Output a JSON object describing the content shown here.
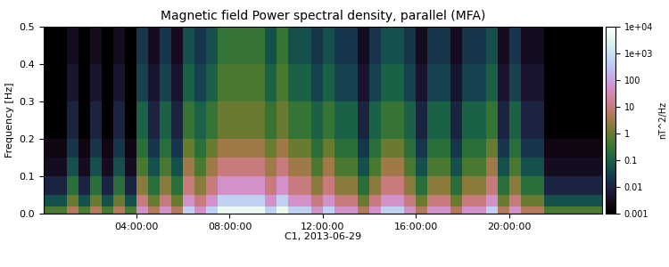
{
  "chart_data": {
    "type": "heatmap",
    "title": "Magnetic field Power spectral density, parallel (MFA)",
    "x_label": "C1, 2013-06-29",
    "y_label": "Frequency [Hz]",
    "xlim": [
      0,
      24
    ],
    "xticks": [
      {
        "value": 4,
        "label": "04:00:00"
      },
      {
        "value": 8,
        "label": "08:00:00"
      },
      {
        "value": 12,
        "label": "12:00:00"
      },
      {
        "value": 16,
        "label": "16:00:00"
      },
      {
        "value": 20,
        "label": "20:00:00"
      }
    ],
    "ylim": [
      0,
      0.5
    ],
    "yticks": [
      {
        "value": 0,
        "label": "0.0"
      },
      0.1,
      0.2,
      0.3,
      0.4,
      0.5
    ],
    "x_bins": [
      0,
      0.5,
      1,
      1.5,
      2,
      2.5,
      3,
      3.5,
      4,
      4.5,
      5,
      5.5,
      6,
      6.5,
      7,
      7.5,
      8,
      8.5,
      9,
      9.5,
      10,
      10.5,
      11,
      11.5,
      12,
      12.5,
      13,
      13.5,
      14,
      14.5,
      15,
      15.5,
      16,
      16.5,
      17,
      17.5,
      18,
      18.5,
      19,
      19.5,
      20,
      20.5,
      21,
      21.5,
      22,
      22.5,
      23,
      23.5,
      24
    ],
    "y_bins": [
      0,
      0.02,
      0.05,
      0.1,
      0.15,
      0.2,
      0.3,
      0.4,
      0.5
    ],
    "cells": [
      [
        0.5,
        0.5,
        5,
        0.5,
        5,
        0.5,
        5,
        0.5,
        50,
        5,
        50,
        5,
        500,
        50,
        500,
        5000,
        5000,
        5000,
        5000,
        500,
        5000,
        500,
        500,
        50,
        500,
        50,
        50,
        5,
        50,
        500,
        500,
        50,
        5,
        50,
        50,
        5,
        50,
        50,
        500,
        5,
        50,
        5,
        5,
        0.5,
        0.5,
        0.5,
        0.5,
        0.5
      ],
      [
        0.05,
        0.05,
        1,
        0.05,
        1,
        0.05,
        1,
        0.05,
        10,
        1,
        10,
        1,
        50,
        10,
        50,
        500,
        500,
        500,
        500,
        50,
        500,
        50,
        50,
        10,
        50,
        10,
        10,
        1,
        10,
        50,
        50,
        10,
        1,
        10,
        10,
        1,
        10,
        10,
        50,
        1,
        10,
        1,
        1,
        0.05,
        0.05,
        0.05,
        0.05,
        0.05
      ],
      [
        0.01,
        0.01,
        0.2,
        0.01,
        0.2,
        0.01,
        0.2,
        0.01,
        2,
        0.2,
        2,
        0.2,
        10,
        2,
        10,
        50,
        50,
        50,
        50,
        10,
        50,
        10,
        10,
        2,
        10,
        2,
        2,
        0.2,
        2,
        10,
        10,
        2,
        0.2,
        2,
        2,
        0.2,
        2,
        2,
        10,
        0.2,
        2,
        0.2,
        0.2,
        0.01,
        0.01,
        0.01,
        0.01,
        0.01
      ],
      [
        0.003,
        0.003,
        0.05,
        0.003,
        0.05,
        0.003,
        0.05,
        0.003,
        0.5,
        0.05,
        0.5,
        0.05,
        3,
        0.5,
        3,
        10,
        10,
        10,
        10,
        3,
        10,
        3,
        3,
        0.5,
        3,
        0.5,
        0.5,
        0.05,
        0.5,
        3,
        3,
        0.5,
        0.05,
        0.5,
        0.5,
        0.05,
        0.5,
        0.5,
        3,
        0.05,
        0.5,
        0.05,
        0.05,
        0.003,
        0.003,
        0.003,
        0.003,
        0.003
      ],
      [
        0.002,
        0.002,
        0.02,
        0.002,
        0.02,
        0.002,
        0.02,
        0.002,
        0.2,
        0.02,
        0.2,
        0.02,
        1,
        0.2,
        1,
        3,
        3,
        3,
        3,
        1,
        3,
        1,
        1,
        0.2,
        1,
        0.2,
        0.2,
        0.02,
        0.2,
        1,
        1,
        0.2,
        0.02,
        0.2,
        0.2,
        0.02,
        0.2,
        0.2,
        1,
        0.02,
        0.2,
        0.02,
        0.02,
        0.002,
        0.002,
        0.002,
        0.002,
        0.002
      ],
      [
        0.001,
        0.001,
        0.01,
        0.001,
        0.01,
        0.001,
        0.01,
        0.001,
        0.1,
        0.01,
        0.1,
        0.01,
        0.3,
        0.1,
        0.3,
        1,
        1,
        1,
        1,
        0.3,
        1,
        0.3,
        0.3,
        0.1,
        0.3,
        0.1,
        0.1,
        0.01,
        0.1,
        0.3,
        0.3,
        0.1,
        0.01,
        0.1,
        0.1,
        0.01,
        0.1,
        0.1,
        0.3,
        0.01,
        0.1,
        0.01,
        0.01,
        0.001,
        0.001,
        0.001,
        0.001,
        0.001
      ],
      [
        0.001,
        0.001,
        0.005,
        0.001,
        0.005,
        0.001,
        0.005,
        0.001,
        0.03,
        0.005,
        0.03,
        0.005,
        0.1,
        0.03,
        0.1,
        0.5,
        0.5,
        0.5,
        0.5,
        0.1,
        0.5,
        0.1,
        0.1,
        0.03,
        0.1,
        0.03,
        0.03,
        0.005,
        0.03,
        0.1,
        0.1,
        0.03,
        0.005,
        0.03,
        0.03,
        0.005,
        0.03,
        0.03,
        0.1,
        0.005,
        0.03,
        0.005,
        0.005,
        0.001,
        0.001,
        0.001,
        0.001,
        0.001
      ],
      [
        0.001,
        0.001,
        0.003,
        0.001,
        0.003,
        0.001,
        0.003,
        0.001,
        0.02,
        0.003,
        0.02,
        0.003,
        0.05,
        0.02,
        0.05,
        0.3,
        0.3,
        0.3,
        0.3,
        0.05,
        0.3,
        0.05,
        0.05,
        0.02,
        0.05,
        0.02,
        0.02,
        0.003,
        0.02,
        0.05,
        0.05,
        0.02,
        0.003,
        0.02,
        0.02,
        0.003,
        0.02,
        0.02,
        0.05,
        0.003,
        0.02,
        0.003,
        0.003,
        0.001,
        0.001,
        0.001,
        0.001,
        0.001
      ]
    ],
    "colorbar": {
      "label": "nT^2/Hz",
      "scale": "log",
      "range": [
        0.001,
        10000
      ],
      "ticks": [
        0.001,
        0.01,
        0.1,
        1,
        10,
        100,
        {
          "value": 1000,
          "label": "1e+03"
        },
        {
          "value": 10000,
          "label": "1e+04"
        }
      ]
    }
  }
}
